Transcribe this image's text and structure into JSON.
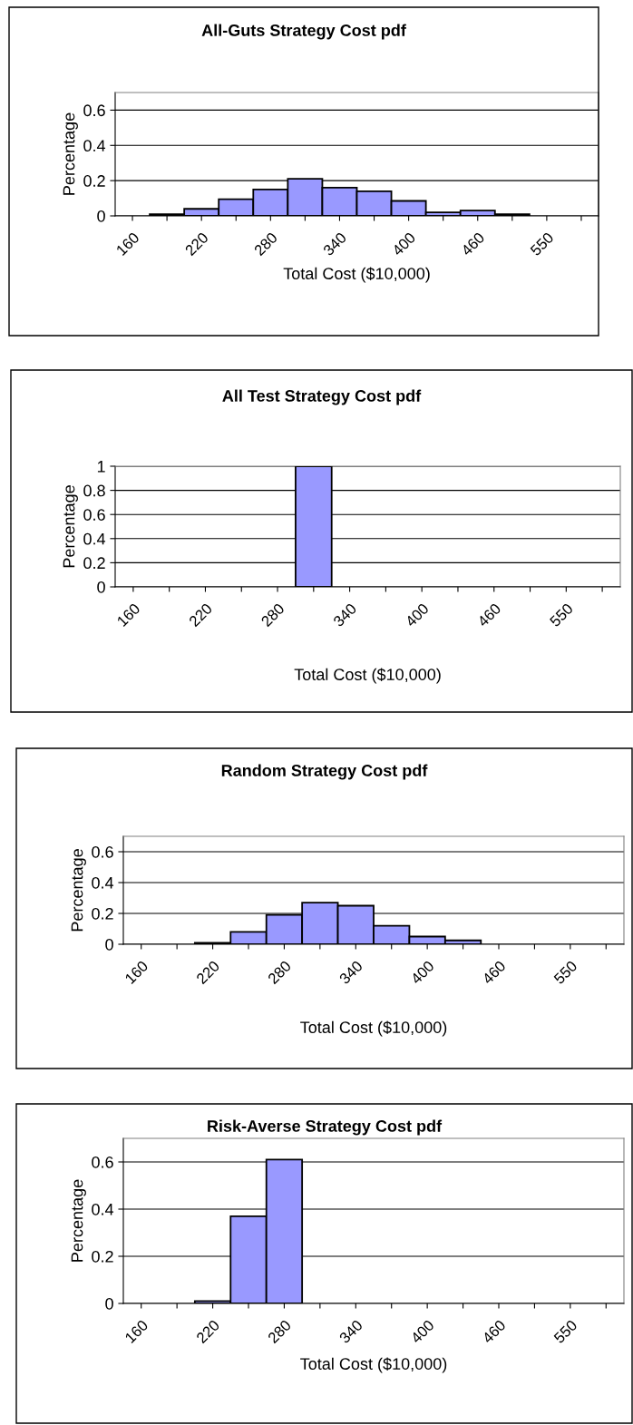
{
  "chart_data": [
    {
      "type": "bar",
      "title": "All-Guts Strategy Cost pdf",
      "xlabel": "Total Cost ($10,000)",
      "ylabel": "Percentage",
      "categories": [
        "160",
        null,
        "220",
        null,
        "280",
        null,
        "340",
        null,
        "400",
        null,
        "460",
        null,
        "550",
        null
      ],
      "values": [
        null,
        0.01,
        0.04,
        0.095,
        0.15,
        0.21,
        0.16,
        0.14,
        0.085,
        0.02,
        0.03,
        0.01,
        null,
        null
      ],
      "color": "#9999ff",
      "ylim": [
        0,
        0.7
      ],
      "yticks": [
        0,
        0.2,
        0.4,
        0.6
      ],
      "grid": "y"
    },
    {
      "type": "bar",
      "title": "All Test Strategy Cost pdf",
      "xlabel": "Total Cost ($10,000)",
      "ylabel": "Percentage",
      "categories": [
        "160",
        null,
        "220",
        null,
        "280",
        null,
        "340",
        null,
        "400",
        null,
        "460",
        null,
        "550",
        null
      ],
      "values": [
        null,
        null,
        null,
        null,
        null,
        1,
        null,
        null,
        null,
        null,
        null,
        null,
        null,
        null
      ],
      "color": "#9999ff",
      "ylim": [
        0,
        1
      ],
      "yticks": [
        0,
        0.2,
        0.4,
        0.6,
        0.8,
        1
      ],
      "grid": "y"
    },
    {
      "type": "bar",
      "title": "Random Strategy Cost pdf",
      "xlabel": "Total Cost ($10,000)",
      "ylabel": "Percentage",
      "categories": [
        "160",
        null,
        "220",
        null,
        "280",
        null,
        "340",
        null,
        "400",
        null,
        "460",
        null,
        "550",
        null
      ],
      "values": [
        null,
        null,
        0.01,
        0.08,
        0.19,
        0.27,
        0.25,
        0.12,
        0.05,
        0.025,
        null,
        null,
        null,
        null
      ],
      "color": "#9999ff",
      "ylim": [
        0,
        0.7
      ],
      "yticks": [
        0,
        0.2,
        0.4,
        0.6
      ],
      "grid": "y"
    },
    {
      "type": "bar",
      "title": "Risk-Averse Strategy Cost pdf",
      "xlabel": "Total Cost ($10,000)",
      "ylabel": "Percentage",
      "categories": [
        "160",
        null,
        "220",
        null,
        "280",
        null,
        "340",
        null,
        "400",
        null,
        "460",
        null,
        "550",
        null
      ],
      "values": [
        null,
        null,
        0.01,
        0.37,
        0.61,
        null,
        null,
        null,
        null,
        null,
        null,
        null,
        null,
        null
      ],
      "color": "#9999ff",
      "ylim": [
        0,
        0.7
      ],
      "yticks": [
        0,
        0.2,
        0.4,
        0.6
      ],
      "grid": "y"
    }
  ]
}
